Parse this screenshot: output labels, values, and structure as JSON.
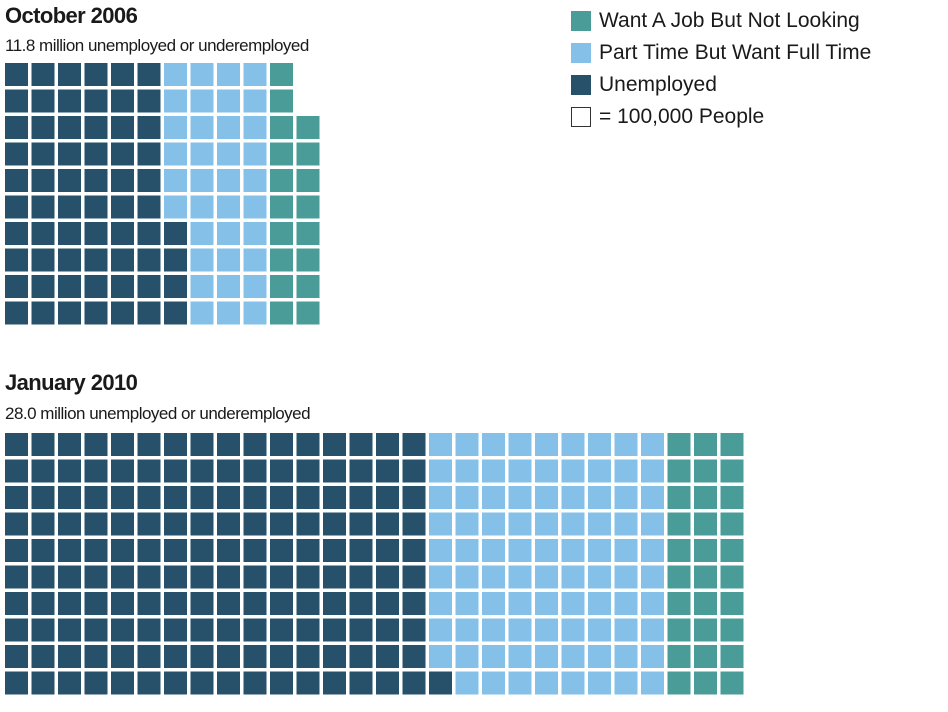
{
  "colors": {
    "unemployed": "#27516b",
    "part_time": "#84c0e7",
    "not_looking": "#4a9c98"
  },
  "legend": {
    "items": [
      {
        "key": "not_looking",
        "label": "Want A Job But Not Looking"
      },
      {
        "key": "part_time",
        "label": "Part Time But Want Full Time"
      },
      {
        "key": "unemployed",
        "label": "Unemployed"
      }
    ],
    "unit_label": "= 100,000 People"
  },
  "chart_data": [
    {
      "type": "waffle",
      "title": "October 2006",
      "subtitle": "11.8 million unemployed or underemployed",
      "unit": "100,000 people per square",
      "rows": 10,
      "series": [
        {
          "name": "Unemployed",
          "key": "unemployed",
          "squares": 64
        },
        {
          "name": "Part Time But Want Full Time",
          "key": "part_time",
          "squares": 36
        },
        {
          "name": "Want A Job But Not Looking",
          "key": "not_looking",
          "squares": 18
        }
      ]
    },
    {
      "type": "waffle",
      "title": "January 2010",
      "subtitle": "28.0 million unemployed or underemployed",
      "unit": "100,000 people per square",
      "rows": 10,
      "series": [
        {
          "name": "Unemployed",
          "key": "unemployed",
          "squares": 161
        },
        {
          "name": "Part Time But Want Full Time",
          "key": "part_time",
          "squares": 89
        },
        {
          "name": "Want A Job But Not Looking",
          "key": "not_looking",
          "squares": 30
        }
      ]
    }
  ]
}
